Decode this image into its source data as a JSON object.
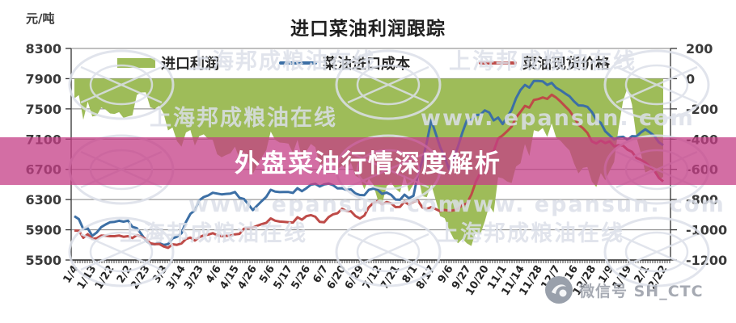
{
  "meta": {
    "unit_label": "元/吨",
    "title": "进口菜油利润跟踪"
  },
  "banner": {
    "text": "外盘菜油行情深度解析",
    "color": "rgba(196,62,134,0.75)"
  },
  "legend": [
    {
      "label": "进口利润",
      "type": "area",
      "color": "#9EBC59"
    },
    {
      "label": "菜油进口成本",
      "type": "line",
      "color": "#3C6FA5"
    },
    {
      "label": "菜油现货价格",
      "type": "line",
      "color": "#BE4B48"
    }
  ],
  "watermark": {
    "texts": [
      "上海邦成粮油在线",
      "www. epansun. com"
    ],
    "wechat_text": "微信号 SH_CTC",
    "color": "#dce0e9"
  },
  "chart_data": {
    "type": "mixed",
    "title": "进口菜油利润跟踪",
    "grid": true,
    "legend_position": "top",
    "x_labels": [
      "1/4",
      "1/13",
      "1/22",
      "2/2",
      "2/23",
      "3/3",
      "3/14",
      "3/23",
      "4/6",
      "4/15",
      "4/26",
      "5/6",
      "5/17",
      "5/26",
      "6/7",
      "6/20",
      "6/29",
      "7/12",
      "7/21",
      "8/1",
      "8/17",
      "9/6",
      "9/27",
      "10/20",
      "11/1",
      "11/14",
      "11/28",
      "12/7",
      "12/16",
      "12/28",
      "1/9",
      "1/19",
      "2/1",
      "2/22"
    ],
    "left_axis": {
      "label": "元/吨",
      "min": 5500,
      "max": 8300,
      "ticks": [
        8300,
        7900,
        7500,
        7100,
        6700,
        6300,
        5900,
        5500
      ]
    },
    "right_axis": {
      "min": -1200,
      "max": 200,
      "ticks": [
        200,
        0,
        -200,
        -400,
        -600,
        -800,
        -1000,
        -1200
      ]
    },
    "series": [
      {
        "name": "进口利润",
        "type": "area",
        "axis": "right",
        "color": "#9EBC59",
        "values": [
          -130,
          -250,
          -230,
          -250,
          -90,
          -230,
          -450,
          -380,
          -500,
          -450,
          -630,
          -350,
          -430,
          -480,
          -560,
          -575,
          -660,
          -800,
          -730,
          -700,
          -700,
          -1000,
          -1090,
          -945,
          -660,
          -560,
          -350,
          -390,
          -560,
          -680,
          -610,
          -60,
          -620,
          -650
        ]
      },
      {
        "name": "菜油进口成本",
        "type": "line",
        "axis": "left",
        "color": "#3C6FA5",
        "values": [
          6080,
          5820,
          6000,
          6020,
          5760,
          5700,
          5855,
          6290,
          6380,
          6400,
          6160,
          6430,
          6400,
          6450,
          6500,
          6450,
          6360,
          6430,
          6300,
          6350,
          7350,
          6700,
          7350,
          7480,
          7300,
          7750,
          7870,
          7780,
          7600,
          7460,
          7150,
          7090,
          7230,
          7020
        ]
      },
      {
        "name": "菜油现货价格",
        "type": "line",
        "axis": "left",
        "color": "#BE4B48",
        "values": [
          5890,
          5780,
          5815,
          5815,
          5780,
          5680,
          5720,
          5800,
          5830,
          5840,
          5930,
          6050,
          6000,
          6080,
          6000,
          6180,
          6050,
          6280,
          6200,
          6270,
          6200,
          6150,
          6250,
          6820,
          7150,
          7460,
          7630,
          7650,
          7390,
          7070,
          7070,
          6960,
          6790,
          6540
        ]
      }
    ]
  }
}
